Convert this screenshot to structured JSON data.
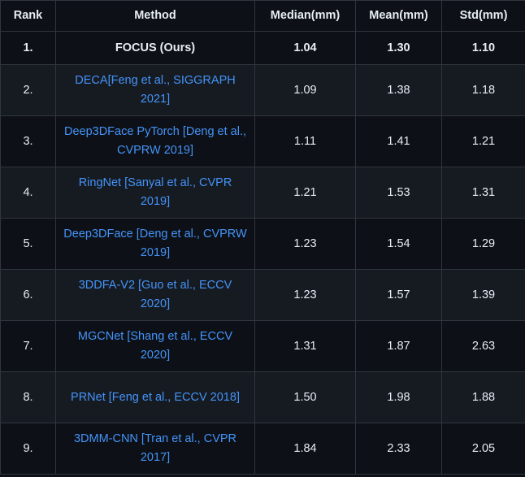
{
  "table": {
    "headers": [
      "Rank",
      "Method",
      "Median(mm)",
      "Mean(mm)",
      "Std(mm)"
    ],
    "rows": [
      {
        "rank": "1.",
        "method": "FOCUS (Ours)",
        "median": "1.04",
        "mean": "1.30",
        "std": "1.10"
      },
      {
        "rank": "2.",
        "method": "DECA[Feng et al., SIGGRAPH 2021]",
        "median": "1.09",
        "mean": "1.38",
        "std": "1.18"
      },
      {
        "rank": "3.",
        "method": "Deep3DFace PyTorch [Deng et al., CVPRW 2019]",
        "median": "1.11",
        "mean": "1.41",
        "std": "1.21"
      },
      {
        "rank": "4.",
        "method": "RingNet [Sanyal et al., CVPR 2019]",
        "median": "1.21",
        "mean": "1.53",
        "std": "1.31"
      },
      {
        "rank": "5.",
        "method": "Deep3DFace [Deng et al., CVPRW 2019]",
        "median": "1.23",
        "mean": "1.54",
        "std": "1.29"
      },
      {
        "rank": "6.",
        "method": "3DDFA-V2 [Guo et al., ECCV 2020]",
        "median": "1.23",
        "mean": "1.57",
        "std": "1.39"
      },
      {
        "rank": "7.",
        "method": "MGCNet [Shang et al., ECCV 2020]",
        "median": "1.31",
        "mean": "1.87",
        "std": "2.63"
      },
      {
        "rank": "8.",
        "method": "PRNet [Feng et al., ECCV 2018]",
        "median": "1.50",
        "mean": "1.98",
        "std": "1.88"
      },
      {
        "rank": "9.",
        "method": "3DMM-CNN [Tran et al., CVPR 2017]",
        "median": "1.84",
        "mean": "2.33",
        "std": "2.05"
      }
    ]
  },
  "colors": {
    "background": "#0d1117",
    "row_alt": "#161b22",
    "border": "#30363d",
    "text": "#e6edf3",
    "link": "#4493f8"
  }
}
